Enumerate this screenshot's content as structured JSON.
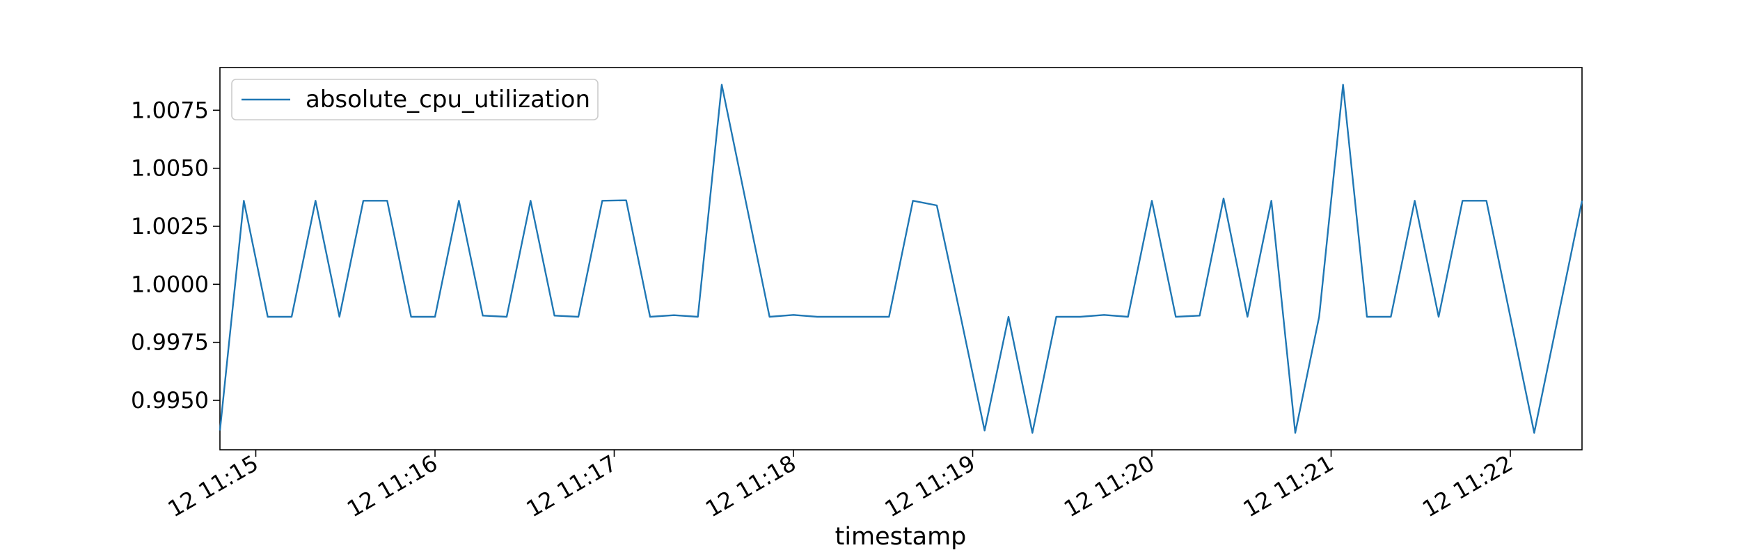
{
  "chart_data": {
    "type": "line",
    "x_label": "timestamp",
    "x": [
      "12 11:14:48",
      "12 11:14:56",
      "12 11:15:04",
      "12 11:15:12",
      "12 11:15:20",
      "12 11:15:28",
      "12 11:15:36",
      "12 11:15:44",
      "12 11:15:52",
      "12 11:16:00",
      "12 11:16:08",
      "12 11:16:16",
      "12 11:16:24",
      "12 11:16:32",
      "12 11:16:40",
      "12 11:16:48",
      "12 11:16:56",
      "12 11:17:04",
      "12 11:17:12",
      "12 11:17:20",
      "12 11:17:28",
      "12 11:17:36",
      "12 11:17:44",
      "12 11:17:52",
      "12 11:18:00",
      "12 11:18:08",
      "12 11:18:16",
      "12 11:18:24",
      "12 11:18:32",
      "12 11:18:40",
      "12 11:18:48",
      "12 11:18:56",
      "12 11:19:04",
      "12 11:19:12",
      "12 11:19:20",
      "12 11:19:28",
      "12 11:19:36",
      "12 11:19:44",
      "12 11:19:52",
      "12 11:20:00",
      "12 11:20:08",
      "12 11:20:16",
      "12 11:20:24",
      "12 11:20:32",
      "12 11:20:40",
      "12 11:20:48",
      "12 11:20:56",
      "12 11:21:04",
      "12 11:21:12",
      "12 11:21:20",
      "12 11:21:28",
      "12 11:21:36",
      "12 11:21:44",
      "12 11:21:52",
      "12 11:22:00",
      "12 11:22:08",
      "12 11:22:16",
      "12 11:22:24"
    ],
    "series": [
      {
        "name": "absolute_cpu_utilization",
        "color": "#1f77b4",
        "values": [
          0.9937,
          1.0036,
          0.9986,
          0.9986,
          1.0036,
          0.9986,
          1.0036,
          1.0036,
          0.9986,
          0.9986,
          1.0036,
          0.99865,
          0.9986,
          1.0036,
          0.99865,
          0.9986,
          1.0036,
          1.00362,
          0.9986,
          0.99867,
          0.9986,
          1.0086,
          1.0036,
          0.9986,
          0.99868,
          0.9986,
          0.9986,
          0.9986,
          0.9986,
          1.0036,
          1.0034,
          0.9986,
          0.9937,
          0.9986,
          0.9936,
          0.9986,
          0.9986,
          0.99868,
          0.9986,
          1.0036,
          0.9986,
          0.99865,
          1.0037,
          0.9986,
          1.0036,
          0.9936,
          0.9986,
          1.0086,
          0.9986,
          0.9986,
          1.0036,
          0.9986,
          1.0036,
          1.0036,
          0.9986,
          0.9936,
          0.9986,
          1.0036
        ]
      }
    ],
    "xlim": [
      "12 11:14:48",
      "12 11:22:24"
    ],
    "xticks": [
      "12 11:15",
      "12 11:16",
      "12 11:17",
      "12 11:18",
      "12 11:19",
      "12 11:20",
      "12 11:21",
      "12 11:22"
    ],
    "ylim": [
      0.99287,
      1.00934
    ],
    "yticks": [
      {
        "value": 0.995,
        "label": "0.9950"
      },
      {
        "value": 0.9975,
        "label": "0.9975"
      },
      {
        "value": 1.0,
        "label": "1.0000"
      },
      {
        "value": 1.0025,
        "label": "1.0025"
      },
      {
        "value": 1.005,
        "label": "1.0050"
      },
      {
        "value": 1.0075,
        "label": "1.0075"
      }
    ],
    "legend": "upper left"
  }
}
